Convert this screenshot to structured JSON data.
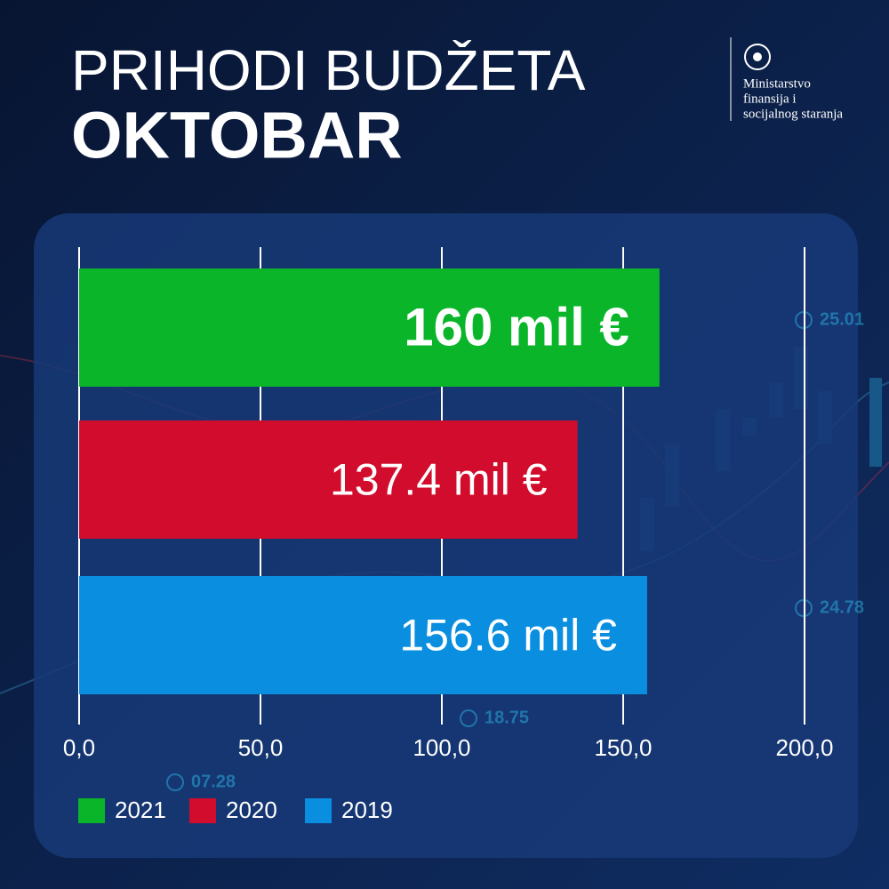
{
  "chart_data": {
    "type": "bar",
    "orientation": "horizontal",
    "title": "PRIHODI BUDŽETA",
    "subtitle": "OKTOBAR",
    "categories": [
      null
    ],
    "series": [
      {
        "name": "2021",
        "color": "#0bb52a",
        "values": [
          160
        ],
        "value_labels": [
          "160 mil €"
        ]
      },
      {
        "name": "2020",
        "color": "#d20c2c",
        "values": [
          137.4
        ],
        "value_labels": [
          "137.4 mil €"
        ]
      },
      {
        "name": "2019",
        "color": "#0a8ee0",
        "values": [
          156.6
        ],
        "value_labels": [
          "156.6 mil €"
        ]
      }
    ],
    "xlim": [
      0,
      200
    ],
    "xticks": [
      {
        "value": 0,
        "label": "0,0"
      },
      {
        "value": 50,
        "label": "50,0"
      },
      {
        "value": 100,
        "label": "100,0"
      },
      {
        "value": 150,
        "label": "150,0"
      },
      {
        "value": 200,
        "label": "200,0"
      }
    ],
    "grid": true,
    "legend": "bottom-left"
  },
  "logo": {
    "lines": [
      "Ministarstvo",
      "finansija i",
      "socijalnog staranja"
    ]
  },
  "background_labels": [
    "25.01",
    "24.78",
    "18.75",
    "07.28"
  ]
}
